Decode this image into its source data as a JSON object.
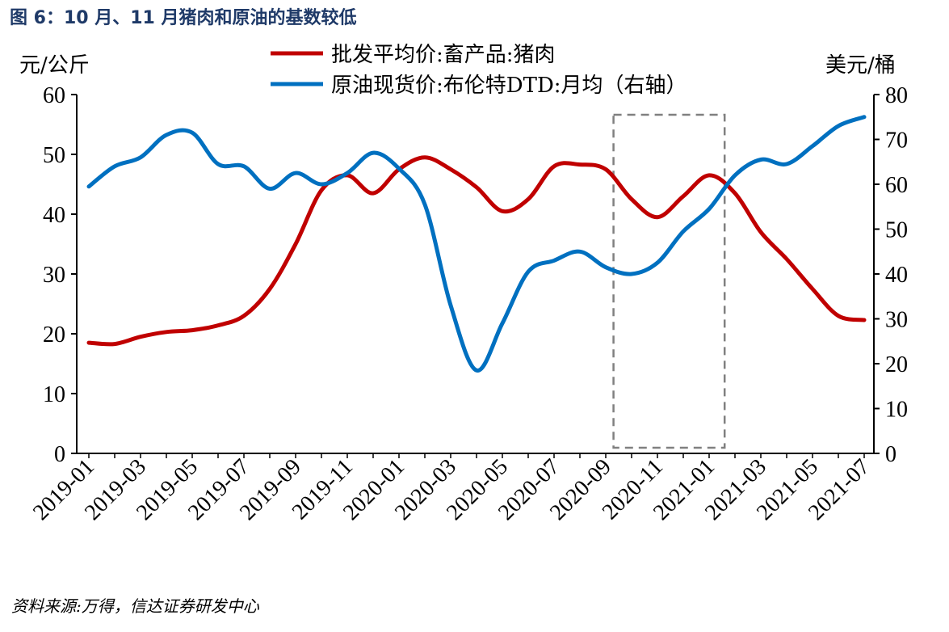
{
  "title": "图 6：10 月、11 月猪肉和原油的基数较低",
  "source": "资料来源:万得，信达证券研发中心",
  "chart_data": {
    "type": "line",
    "left_axis": {
      "unit": "元/公斤",
      "ylim": [
        0,
        60
      ],
      "ticks": [
        "0",
        "10",
        "20",
        "30",
        "40",
        "50",
        "60"
      ]
    },
    "right_axis": {
      "unit": "美元/桶",
      "ylim": [
        0,
        80
      ],
      "ticks": [
        "0",
        "10",
        "20",
        "30",
        "40",
        "50",
        "60",
        "70",
        "80"
      ]
    },
    "x_tick_labels": [
      "2019-01",
      "2019-03",
      "2019-05",
      "2019-07",
      "2019-09",
      "2019-11",
      "2020-01",
      "2020-03",
      "2020-05",
      "2020-07",
      "2020-09",
      "2020-11",
      "2021-01",
      "2021-03",
      "2021-05",
      "2021-07"
    ],
    "x": [
      "2019-01",
      "2019-02",
      "2019-03",
      "2019-04",
      "2019-05",
      "2019-06",
      "2019-07",
      "2019-08",
      "2019-09",
      "2019-10",
      "2019-11",
      "2019-12",
      "2020-01",
      "2020-02",
      "2020-03",
      "2020-04",
      "2020-05",
      "2020-06",
      "2020-07",
      "2020-08",
      "2020-09",
      "2020-10",
      "2020-11",
      "2020-12",
      "2021-01",
      "2021-02",
      "2021-03",
      "2021-04",
      "2021-05",
      "2021-06",
      "2021-07"
    ],
    "series": [
      {
        "name": "批发平均价:畜产品:猪肉",
        "axis": "left",
        "color": "#c00000",
        "values": [
          18.5,
          18.3,
          19.5,
          20.3,
          20.6,
          21.4,
          23.0,
          27.5,
          35.0,
          44.0,
          46.5,
          43.5,
          47.5,
          49.5,
          47.5,
          44.5,
          40.5,
          42.5,
          48.0,
          48.3,
          47.5,
          42.5,
          39.5,
          43.0,
          46.5,
          43.5,
          37.0,
          32.5,
          27.5,
          23.0,
          22.3
        ]
      },
      {
        "name": "原油现货价:布伦特DTD:月均（右轴）",
        "axis": "right",
        "color": "#0070c0",
        "values": [
          59.5,
          64.0,
          66.0,
          71.0,
          71.5,
          64.5,
          64.0,
          59.0,
          62.5,
          60.0,
          62.5,
          67.0,
          63.5,
          55.5,
          33.0,
          18.5,
          29.0,
          40.5,
          43.0,
          45.0,
          41.5,
          40.0,
          42.5,
          49.5,
          54.5,
          62.0,
          65.5,
          64.5,
          68.5,
          73.0,
          75.0
        ]
      }
    ],
    "highlight_box": [
      "2020-10",
      "2021-01"
    ]
  }
}
